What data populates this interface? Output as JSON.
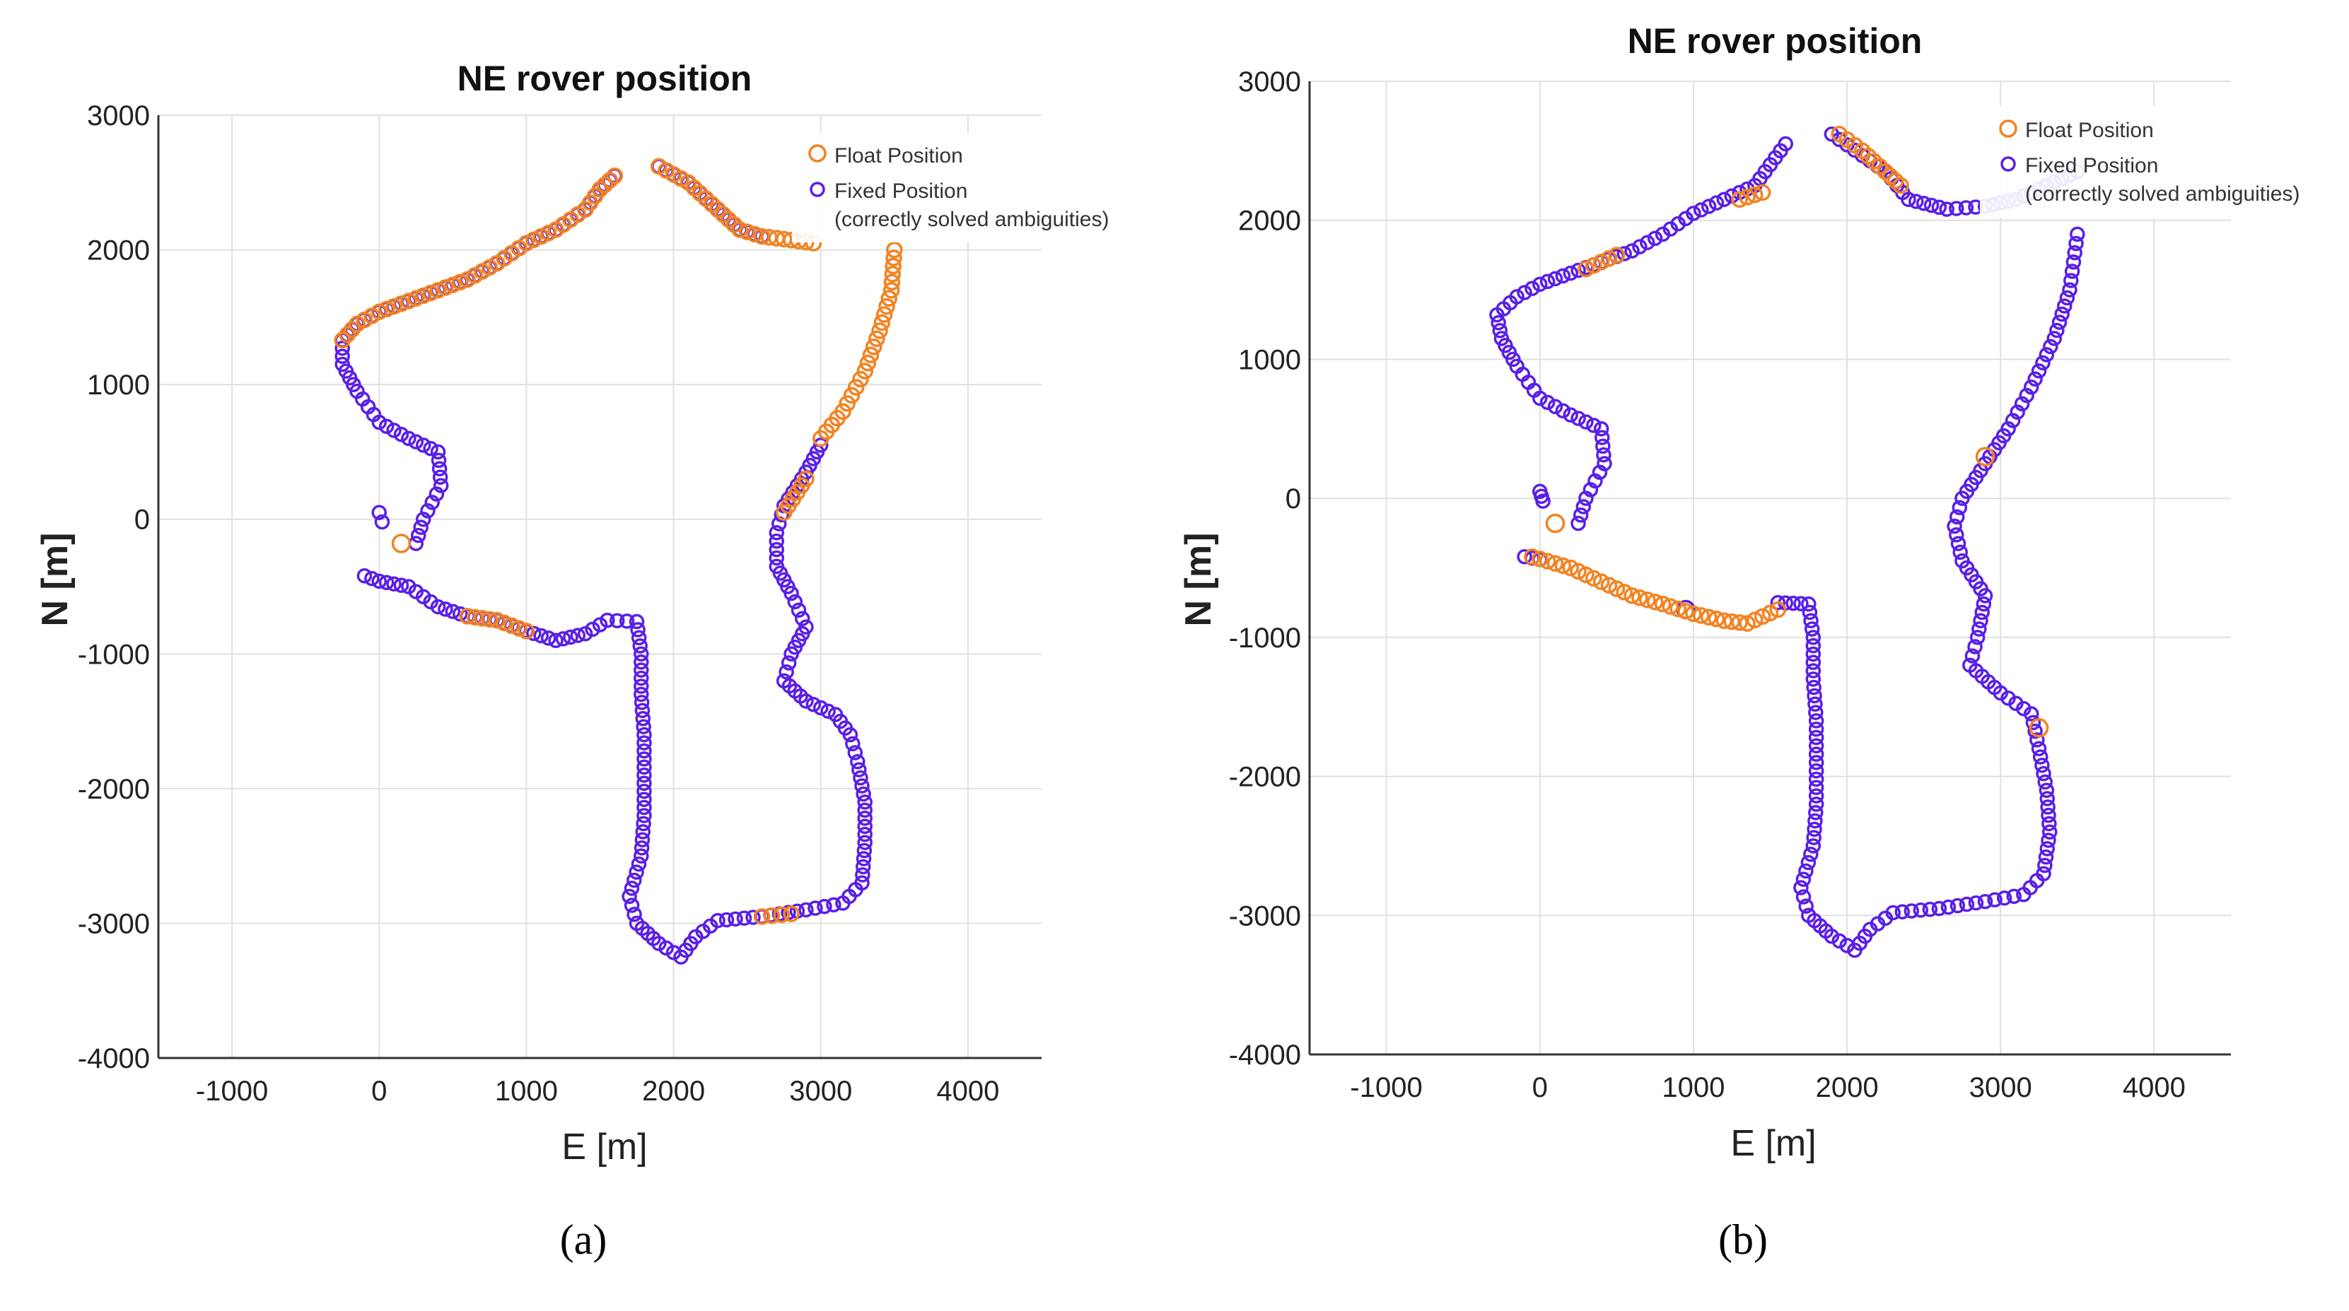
{
  "colors": {
    "float": "#F28322",
    "fixed": "#5A1FE6",
    "grid": "#e0e0e0",
    "axis": "#333333"
  },
  "chart_data": [
    {
      "type": "scatter",
      "panel_label": "(a)",
      "title": "NE rover position",
      "xlabel": "E [m]",
      "ylabel": "N [m]",
      "xlim": [
        -1500,
        4500
      ],
      "ylim": [
        -4000,
        3000
      ],
      "xticks": [
        -1000,
        0,
        1000,
        2000,
        3000,
        4000
      ],
      "yticks": [
        3000,
        2000,
        1000,
        0,
        -1000,
        -2000,
        -3000,
        -4000
      ],
      "grid": true,
      "legend_position": "top-right",
      "legend": [
        {
          "marker": "circle-float",
          "label": "Float Position"
        },
        {
          "marker": "circle-fixed",
          "label": "Fixed Position",
          "sublabel": "(correctly solved ambiguities)"
        }
      ],
      "series": [
        {
          "name": "Float Position",
          "key": "float",
          "segments": [
            [
              [
                1600,
                2550
              ],
              [
                1500,
                2450
              ],
              [
                1400,
                2300
              ],
              [
                1200,
                2150
              ],
              [
                1000,
                2050
              ],
              [
                800,
                1900
              ],
              [
                600,
                1780
              ],
              [
                400,
                1700
              ],
              [
                200,
                1620
              ],
              [
                0,
                1540
              ],
              [
                -150,
                1450
              ],
              [
                -250,
                1330
              ]
            ],
            [
              [
                1900,
                2620
              ],
              [
                2100,
                2500
              ],
              [
                2300,
                2300
              ],
              [
                2450,
                2150
              ],
              [
                2600,
                2100
              ],
              [
                2750,
                2080
              ],
              [
                2950,
                2050
              ]
            ],
            [
              [
                3500,
                2000
              ],
              [
                3480,
                1700
              ],
              [
                3400,
                1400
              ],
              [
                3300,
                1100
              ],
              [
                3150,
                800
              ],
              [
                3000,
                600
              ]
            ],
            [
              [
                2900,
                300
              ],
              [
                2750,
                50
              ]
            ],
            [
              [
                600,
                -720
              ],
              [
                800,
                -750
              ],
              [
                1000,
                -830
              ]
            ],
            [
              [
                150,
                -180
              ]
            ],
            [
              [
                2600,
                -2950
              ],
              [
                2800,
                -2930
              ]
            ]
          ]
        },
        {
          "name": "Fixed Position",
          "key": "fixed",
          "segments": [
            [
              [
                1600,
                2550
              ],
              [
                1500,
                2450
              ],
              [
                1400,
                2300
              ],
              [
                1200,
                2150
              ],
              [
                1000,
                2050
              ],
              [
                800,
                1900
              ],
              [
                600,
                1780
              ],
              [
                400,
                1700
              ],
              [
                200,
                1620
              ],
              [
                0,
                1540
              ],
              [
                -150,
                1450
              ],
              [
                -250,
                1330
              ],
              [
                -250,
                1150
              ],
              [
                -150,
                950
              ],
              [
                0,
                720
              ],
              [
                200,
                600
              ],
              [
                400,
                500
              ],
              [
                420,
                250
              ],
              [
                300,
                0
              ],
              [
                250,
                -180
              ]
            ],
            [
              [
                1900,
                2620
              ],
              [
                2100,
                2500
              ],
              [
                2300,
                2300
              ],
              [
                2450,
                2150
              ],
              [
                2600,
                2100
              ]
            ],
            [
              [
                0,
                50
              ],
              [
                20,
                -20
              ]
            ],
            [
              [
                3000,
                550
              ],
              [
                2900,
                350
              ],
              [
                2750,
                100
              ],
              [
                2700,
                -100
              ],
              [
                2700,
                -350
              ],
              [
                2800,
                -550
              ],
              [
                2900,
                -800
              ],
              [
                2800,
                -1000
              ],
              [
                2750,
                -1200
              ],
              [
                2900,
                -1350
              ],
              [
                3100,
                -1450
              ],
              [
                3200,
                -1600
              ],
              [
                3250,
                -1800
              ],
              [
                3300,
                -2100
              ],
              [
                3300,
                -2400
              ],
              [
                3280,
                -2700
              ],
              [
                3150,
                -2850
              ],
              [
                2900,
                -2900
              ],
              [
                2600,
                -2950
              ],
              [
                2300,
                -2980
              ],
              [
                2150,
                -3100
              ],
              [
                2050,
                -3250
              ],
              [
                1900,
                -3150
              ],
              [
                1750,
                -3000
              ],
              [
                1700,
                -2800
              ],
              [
                1780,
                -2500
              ],
              [
                1800,
                -2200
              ],
              [
                1800,
                -1900
              ],
              [
                1800,
                -1600
              ],
              [
                1780,
                -1300
              ],
              [
                1780,
                -1000
              ],
              [
                1750,
                -760
              ],
              [
                1550,
                -750
              ],
              [
                1400,
                -850
              ],
              [
                1200,
                -900
              ],
              [
                1000,
                -830
              ],
              [
                800,
                -750
              ],
              [
                600,
                -720
              ],
              [
                400,
                -650
              ],
              [
                200,
                -500
              ],
              [
                0,
                -460
              ],
              [
                -100,
                -420
              ]
            ]
          ]
        }
      ],
      "annotations": []
    },
    {
      "type": "scatter",
      "panel_label": "(b)",
      "title": "NE rover position",
      "xlabel": "E [m]",
      "ylabel": "N [m]",
      "xlim": [
        -1500,
        4500
      ],
      "ylim": [
        -4000,
        3000
      ],
      "xticks": [
        -1000,
        0,
        1000,
        2000,
        3000,
        4000
      ],
      "yticks": [
        3000,
        2000,
        1000,
        0,
        -1000,
        -2000,
        -3000,
        -4000
      ],
      "grid": true,
      "legend_position": "top-right",
      "legend": [
        {
          "marker": "circle-float",
          "label": "Float Position"
        },
        {
          "marker": "circle-fixed",
          "label": "Fixed Position",
          "sublabel": "(correctly solved ambiguities)"
        }
      ],
      "series": [
        {
          "name": "Float Position",
          "key": "float",
          "segments": [
            [
              [
                1950,
                2620
              ],
              [
                2100,
                2500
              ],
              [
                2250,
                2350
              ],
              [
                2350,
                2250
              ]
            ],
            [
              [
                500,
                1750
              ],
              [
                400,
                1700
              ],
              [
                300,
                1650
              ]
            ],
            [
              [
                1450,
                2200
              ],
              [
                1300,
                2150
              ]
            ],
            [
              [
                -50,
                -420
              ],
              [
                200,
                -500
              ],
              [
                400,
                -600
              ],
              [
                600,
                -700
              ],
              [
                800,
                -760
              ],
              [
                1000,
                -830
              ],
              [
                1200,
                -880
              ],
              [
                1350,
                -900
              ],
              [
                1550,
                -800
              ]
            ],
            [
              [
                100,
                -180
              ]
            ],
            [
              [
                3250,
                -1650
              ]
            ],
            [
              [
                2900,
                300
              ]
            ]
          ]
        },
        {
          "name": "Fixed Position",
          "key": "fixed",
          "segments": [
            [
              [
                1600,
                2550
              ],
              [
                1500,
                2400
              ],
              [
                1400,
                2250
              ],
              [
                1200,
                2150
              ],
              [
                1000,
                2050
              ],
              [
                800,
                1900
              ],
              [
                600,
                1780
              ],
              [
                400,
                1700
              ],
              [
                200,
                1620
              ],
              [
                0,
                1540
              ],
              [
                -150,
                1450
              ],
              [
                -280,
                1320
              ],
              [
                -250,
                1150
              ],
              [
                -150,
                950
              ],
              [
                0,
                720
              ],
              [
                200,
                600
              ],
              [
                400,
                500
              ],
              [
                420,
                250
              ],
              [
                300,
                0
              ],
              [
                250,
                -180
              ]
            ],
            [
              [
                1900,
                2620
              ],
              [
                2250,
                2350
              ],
              [
                2400,
                2150
              ],
              [
                2650,
                2080
              ],
              [
                2900,
                2100
              ],
              [
                3100,
                2150
              ],
              [
                3300,
                2250
              ],
              [
                3500,
                2350
              ]
            ],
            [
              [
                3500,
                1900
              ],
              [
                3450,
                1500
              ],
              [
                3350,
                1150
              ],
              [
                3200,
                800
              ],
              [
                3050,
                500
              ],
              [
                2900,
                250
              ],
              [
                2750,
                0
              ],
              [
                2700,
                -200
              ],
              [
                2750,
                -450
              ],
              [
                2900,
                -700
              ],
              [
                2850,
                -1000
              ],
              [
                2800,
                -1200
              ],
              [
                3000,
                -1400
              ],
              [
                3200,
                -1550
              ],
              [
                3250,
                -1800
              ],
              [
                3300,
                -2100
              ],
              [
                3320,
                -2400
              ],
              [
                3280,
                -2700
              ],
              [
                3150,
                -2850
              ],
              [
                2900,
                -2900
              ],
              [
                2600,
                -2950
              ],
              [
                2300,
                -2980
              ],
              [
                2150,
                -3100
              ],
              [
                2050,
                -3250
              ],
              [
                1900,
                -3150
              ],
              [
                1750,
                -3000
              ],
              [
                1700,
                -2800
              ],
              [
                1780,
                -2500
              ],
              [
                1800,
                -2200
              ],
              [
                1800,
                -1900
              ],
              [
                1800,
                -1600
              ],
              [
                1780,
                -1300
              ],
              [
                1780,
                -1000
              ],
              [
                1750,
                -760
              ],
              [
                1550,
                -750
              ]
            ],
            [
              [
                0,
                50
              ],
              [
                20,
                -20
              ]
            ],
            [
              [
                -100,
                -420
              ],
              [
                0,
                -440
              ]
            ],
            [
              [
                950,
                -800
              ]
            ]
          ]
        }
      ],
      "annotations": []
    }
  ]
}
